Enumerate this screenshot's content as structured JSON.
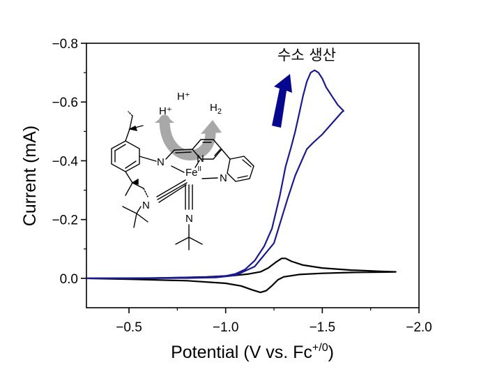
{
  "chart_data": {
    "type": "line",
    "xlabel": "Potential (V vs. Fc",
    "xlabel_sup": "+/0",
    "xlabel_end": ")",
    "ylabel": "Current (mA)",
    "xlim": [
      -0.28,
      -2.0
    ],
    "ylim": [
      0.1,
      -0.8
    ],
    "x_inverted": true,
    "y_inverted": true,
    "x_ticks": [
      -0.5,
      -1.0,
      -1.5,
      -2.0
    ],
    "x_tick_labels": [
      "−0.5",
      "−1.0",
      "−1.5",
      "−2.0"
    ],
    "y_ticks": [
      0.0,
      -0.2,
      -0.4,
      -0.6,
      -0.8
    ],
    "y_tick_labels": [
      "0.0",
      "−0.2",
      "−0.4",
      "−0.6",
      "−0.8"
    ],
    "annotation": "수소 생산",
    "series": [
      {
        "color": "#000000",
        "x": [
          -0.28,
          -0.6,
          -0.9,
          -1.05,
          -1.12,
          -1.18,
          -1.22,
          -1.26,
          -1.29,
          -1.31,
          -1.34,
          -1.4,
          -1.5,
          -1.65,
          -1.8,
          -1.88,
          -1.8,
          -1.65,
          -1.5,
          -1.38,
          -1.3,
          -1.27,
          -1.24,
          -1.21,
          -1.18,
          -1.14,
          -1.08,
          -1.0,
          -0.8,
          -0.5,
          -0.28
        ],
        "y": [
          0.0,
          0.0,
          -0.005,
          -0.01,
          -0.015,
          -0.022,
          -0.035,
          -0.055,
          -0.068,
          -0.068,
          -0.058,
          -0.045,
          -0.035,
          -0.028,
          -0.024,
          -0.022,
          -0.021,
          -0.02,
          -0.017,
          -0.013,
          -0.005,
          0.005,
          0.025,
          0.042,
          0.048,
          0.04,
          0.026,
          0.017,
          0.008,
          0.003,
          0.0
        ]
      },
      {
        "color": "#1a1a8c",
        "x": [
          -0.28,
          -0.6,
          -0.9,
          -1.0,
          -1.05,
          -1.1,
          -1.15,
          -1.2,
          -1.24,
          -1.28,
          -1.31,
          -1.34,
          -1.36,
          -1.38,
          -1.4,
          -1.42,
          -1.44,
          -1.46,
          -1.48,
          -1.5,
          -1.52,
          -1.55,
          -1.58,
          -1.61,
          -1.6,
          -1.5,
          -1.45,
          -1.42,
          -1.4,
          -1.36,
          -1.32,
          -1.25,
          -1.15,
          -1.05,
          -0.95,
          -0.8,
          -0.5,
          -0.28
        ],
        "y": [
          0.0,
          -0.001,
          -0.004,
          -0.008,
          -0.015,
          -0.03,
          -0.06,
          -0.11,
          -0.17,
          -0.28,
          -0.38,
          -0.45,
          -0.5,
          -0.56,
          -0.62,
          -0.67,
          -0.7,
          -0.708,
          -0.7,
          -0.68,
          -0.65,
          -0.62,
          -0.59,
          -0.57,
          -0.565,
          -0.49,
          -0.46,
          -0.44,
          -0.41,
          -0.35,
          -0.27,
          -0.12,
          -0.04,
          -0.01,
          -0.003,
          -0.001,
          0.0,
          0.0
        ]
      }
    ]
  },
  "structure_labels": {
    "h_plus_1": "H⁺",
    "h_plus_2": "H⁺",
    "h2_main": "H",
    "h2_sub": "2",
    "fe": "Fe",
    "fe_ox": "II",
    "n_imine": "N",
    "n_pyr1": "N",
    "n_pyr2": "N",
    "n_nitrile1": "N",
    "n_nitrile2": "N"
  },
  "colors": {
    "blue_curve": "#1a1a8c",
    "arrow_blue": "#08088f",
    "grey_arrow": "#a8a8a8"
  }
}
